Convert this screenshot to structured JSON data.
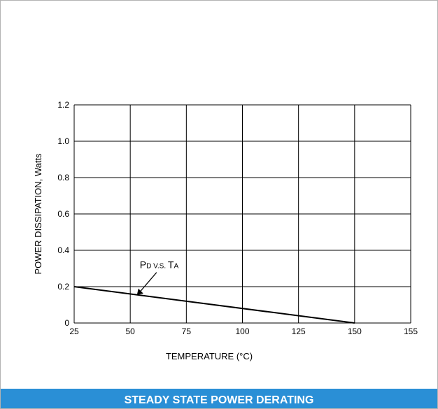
{
  "caption": "STEADY STATE POWER DERATING",
  "chart_data": {
    "type": "line",
    "title": "",
    "xlabel": "TEMPERATURE (°C)",
    "ylabel": "POWER DISSIPATION, Watts",
    "x_ticks": [
      25,
      50,
      75,
      100,
      125,
      150,
      155
    ],
    "y_ticks": [
      0,
      0.2,
      0.4,
      0.6,
      0.8,
      1.0,
      1.2
    ],
    "y_tick_labels": [
      "0",
      "0.2",
      "0.4",
      "0.6",
      "0.8",
      "1.0",
      "1.2"
    ],
    "xlim": [
      25,
      155
    ],
    "ylim": [
      0,
      1.2
    ],
    "grid": true,
    "series": [
      {
        "name": "PD V.S. TA",
        "x": [
          25,
          150
        ],
        "y": [
          0.2,
          0
        ]
      }
    ],
    "annotation": {
      "text": "PD V.S. TA",
      "x": 53,
      "y": 0.155
    },
    "colors": {
      "line": "#000000",
      "grid": "#000000",
      "caption_bg": "#2a8fd6"
    }
  }
}
